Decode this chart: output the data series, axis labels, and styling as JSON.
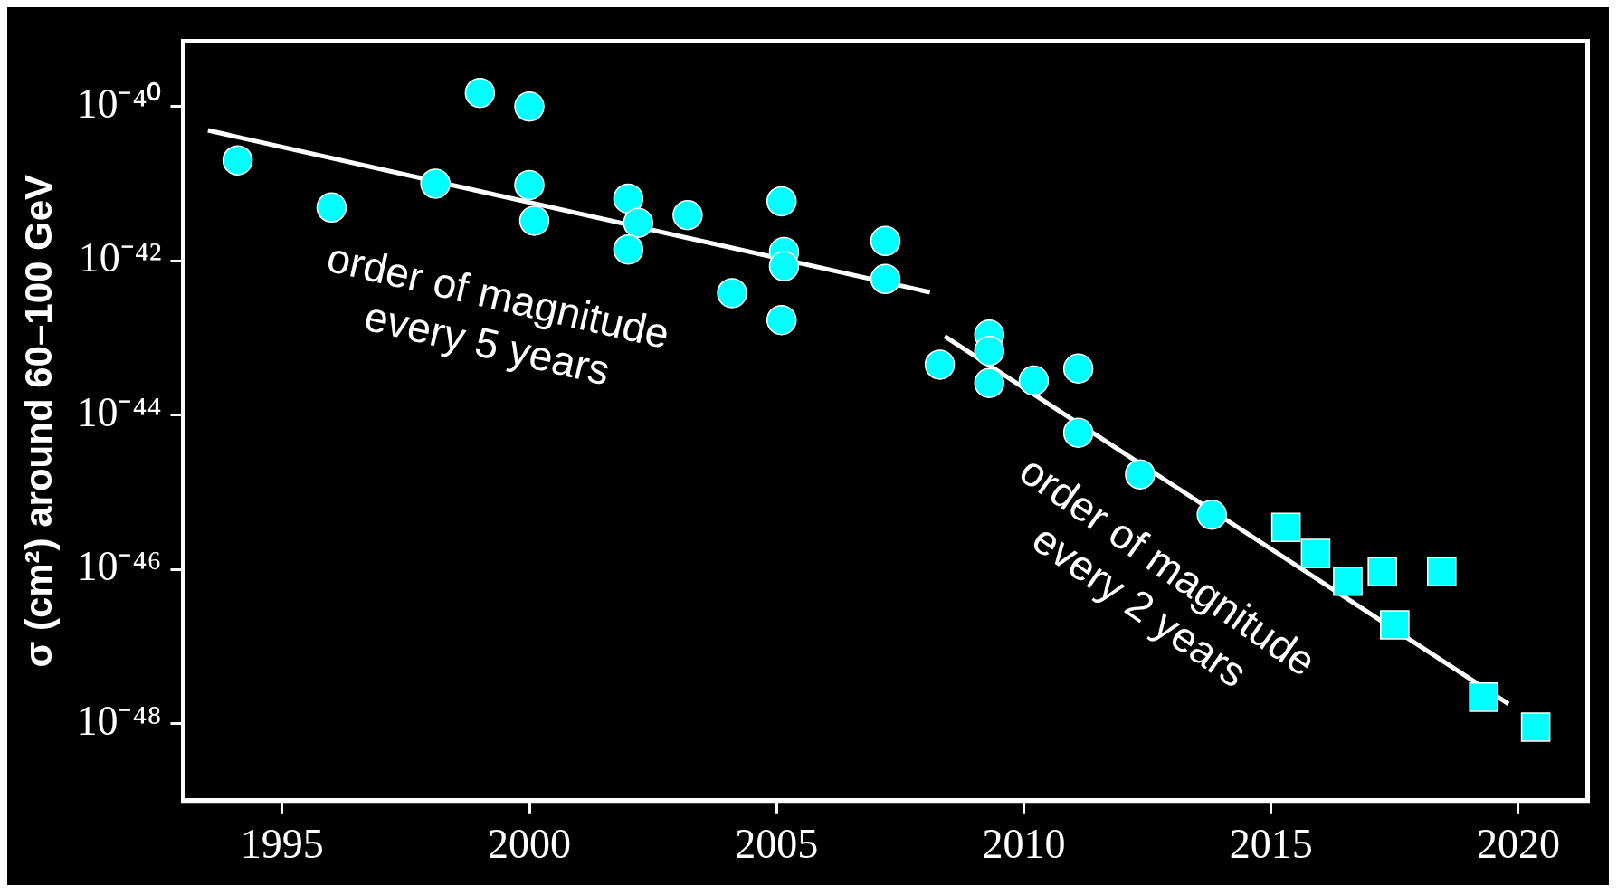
{
  "chart_data": {
    "type": "scatter",
    "ylabel": "σ (cm²) around 60–100 GeV",
    "log": "y",
    "grid": false,
    "legend": false,
    "xlim": [
      1993,
      2021.4
    ],
    "xticks": [
      1995,
      2000,
      2005,
      2010,
      2015,
      2020
    ],
    "ylim": [
      1e-49,
      7e-40
    ],
    "yticks": [
      {
        "value": 1e-48,
        "label": "10⁻⁴⁸"
      },
      {
        "value": 1e-46,
        "label": "10⁻⁴⁶"
      },
      {
        "value": 1e-44,
        "label": "10⁻⁴⁴"
      },
      {
        "value": 1e-42,
        "label": "10⁻⁴²"
      },
      {
        "value": 1e-40,
        "label": "10⁻⁴⁰"
      }
    ],
    "annotations": [
      "order of magnitude\nevery 5 years",
      "order of magnitude\nevery 2 years"
    ],
    "series": [
      {
        "marker": "circle",
        "color": "#00ffff",
        "x": [
          1994.1,
          1996.0,
          1998.1,
          1999.0,
          2000.0,
          2000.0,
          2000.1,
          2002.0,
          2002.2,
          2002.0,
          2003.2,
          2004.1,
          2005.1,
          2005.15,
          2005.15,
          2005.1,
          2007.2,
          2007.2,
          2008.3,
          2009.3,
          2009.3,
          2009.3,
          2010.2,
          2011.1,
          2011.1,
          2012.35,
          2013.8
        ],
        "values": [
          2e-41,
          4.9e-42,
          1e-41,
          1.5e-40,
          1e-40,
          9.6e-42,
          3.3e-42,
          6.4e-42,
          3.1e-42,
          1.4e-42,
          3.9e-42,
          3.8e-43,
          5.9e-42,
          1.3e-42,
          8.5e-43,
          1.7e-43,
          1.8e-42,
          5.8e-43,
          4.5e-44,
          1.1e-43,
          6.8e-44,
          2.6e-44,
          2.8e-44,
          4e-44,
          5.9e-45,
          1.7e-45,
          5.1e-46
        ]
      },
      {
        "marker": "square",
        "color": "#00ffff",
        "x": [
          2015.3,
          2015.9,
          2016.55,
          2017.25,
          2017.5,
          2018.45,
          2019.3,
          2020.35
        ],
        "values": [
          3.5e-46,
          1.6e-46,
          7e-47,
          9.3e-47,
          1.9e-47,
          9.3e-47,
          2.2e-48,
          9e-49
        ]
      },
      {
        "type": "line",
        "marker": "none",
        "color": "#ffffff",
        "x": [
          1993.5,
          2008.1
        ],
        "values": [
          4.9e-41,
          3.9e-43
        ]
      },
      {
        "type": "line",
        "marker": "none",
        "color": "#ffffff",
        "x": [
          2008.4,
          2019.8
        ],
        "values": [
          1.05e-43,
          1.8e-48
        ]
      }
    ]
  }
}
